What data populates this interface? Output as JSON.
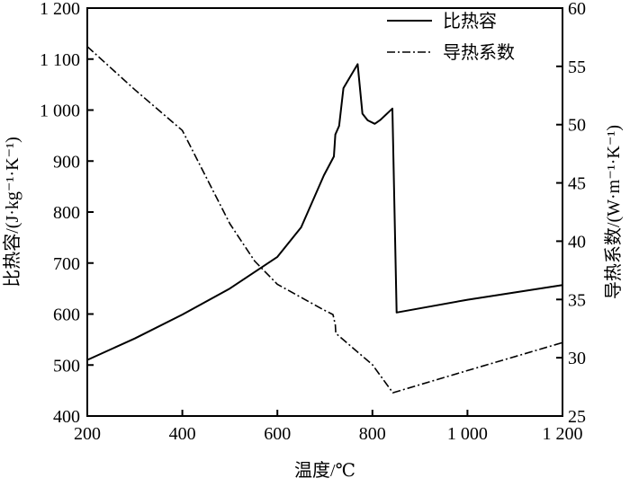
{
  "chart_data": {
    "type": "line",
    "title": "",
    "xlabel": "温度/℃",
    "ylabel_left": "比热容/(J·kg⁻¹·K⁻¹)",
    "ylabel_right": "导热系数/(W·m⁻¹·K⁻¹)",
    "xlim": [
      200,
      1200
    ],
    "ylim_left": [
      400,
      1200
    ],
    "ylim_right": [
      25,
      60
    ],
    "xticks": [
      200,
      400,
      600,
      800,
      1000,
      1200
    ],
    "xtick_labels": [
      "200",
      "400",
      "600",
      "800",
      "1 000",
      "1 200"
    ],
    "yticks_left": [
      400,
      500,
      600,
      700,
      800,
      900,
      1000,
      1100,
      1200
    ],
    "ytick_labels_left": [
      "400",
      "500",
      "600",
      "700",
      "800",
      "900",
      "1 000",
      "1 100",
      "1 200"
    ],
    "yticks_right": [
      25,
      30,
      35,
      40,
      45,
      50,
      55,
      60
    ],
    "ytick_labels_right": [
      "25",
      "30",
      "35",
      "40",
      "45",
      "50",
      "55",
      "60"
    ],
    "grid": false,
    "legend_position": "top-right",
    "series": [
      {
        "name": "比热容",
        "axis": "left",
        "style": "solid",
        "x": [
          200,
          300,
          400,
          500,
          600,
          650,
          698,
          719,
          722,
          730,
          739,
          755,
          769,
          779,
          790,
          805,
          817,
          842,
          851,
          1000,
          1200
        ],
        "y": [
          510,
          552,
          599,
          650,
          712,
          770,
          872,
          909,
          952,
          969,
          1043,
          1068,
          1090,
          993,
          980,
          973,
          981,
          1003,
          603,
          628,
          657
        ]
      },
      {
        "name": "导热系数",
        "axis": "right",
        "style": "dashdot",
        "x": [
          200,
          300,
          400,
          500,
          552,
          600,
          698,
          717,
          722,
          723,
          800,
          843,
          1000,
          1200
        ],
        "y": [
          56.7,
          53.0,
          49.5,
          41.5,
          38.3,
          36.3,
          34.1,
          33.7,
          32.8,
          32.1,
          29.4,
          27.0,
          28.9,
          31.3
        ]
      }
    ]
  }
}
